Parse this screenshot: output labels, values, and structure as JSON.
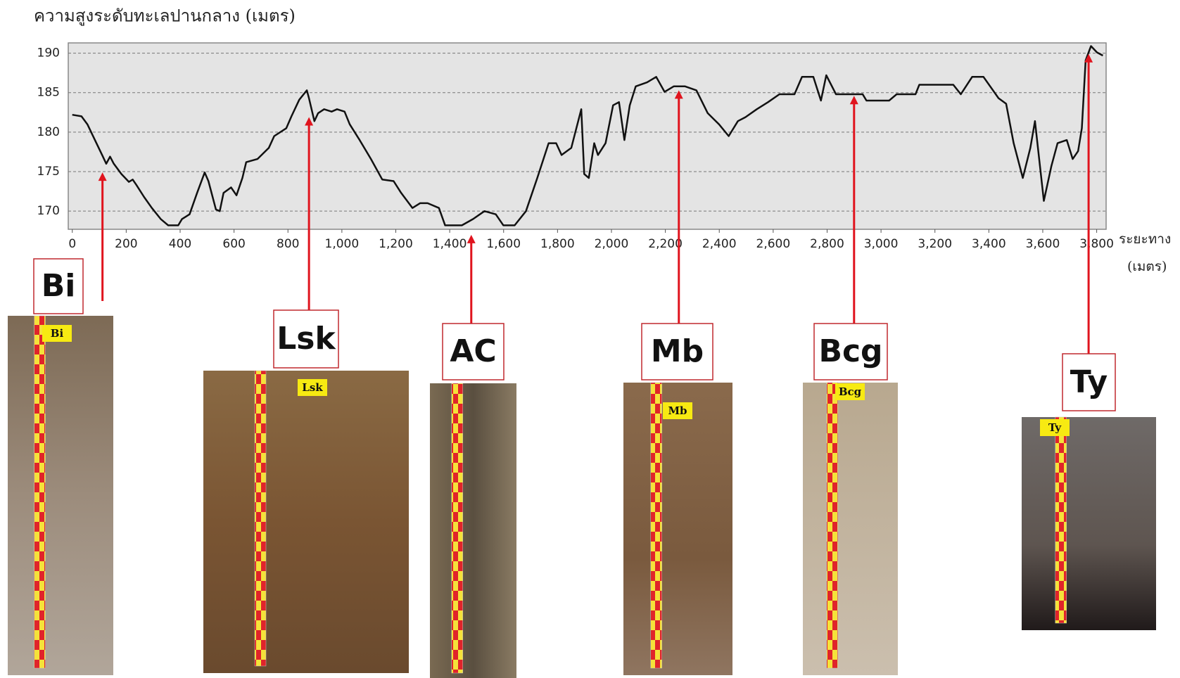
{
  "chart_data": {
    "type": "line",
    "title": "ความสูงระดับทะเลปานกลาง (เมตร)",
    "xlabel": [
      "ระยะทาง",
      "(เมตร)"
    ],
    "x": [
      0,
      34,
      56,
      84,
      112,
      126,
      140,
      154,
      182,
      210,
      224,
      238,
      266,
      295,
      328,
      356,
      393,
      407,
      435,
      463,
      491,
      505,
      533,
      547,
      561,
      589,
      609,
      631,
      645,
      687,
      729,
      749,
      794,
      813,
      842,
      870,
      878,
      898,
      912,
      934,
      962,
      982,
      1010,
      1029,
      1066,
      1108,
      1150,
      1192,
      1220,
      1262,
      1290,
      1318,
      1360,
      1383,
      1445,
      1487,
      1529,
      1571,
      1599,
      1641,
      1683,
      1725,
      1767,
      1795,
      1815,
      1851,
      1888,
      1899,
      1916,
      1936,
      1950,
      1978,
      2006,
      2028,
      2048,
      2068,
      2090,
      2132,
      2166,
      2197,
      2231,
      2273,
      2315,
      2357,
      2399,
      2435,
      2469,
      2497,
      2539,
      2581,
      2623,
      2679,
      2707,
      2749,
      2777,
      2797,
      2833,
      2932,
      2946,
      3030,
      3058,
      3128,
      3142,
      3268,
      3296,
      3338,
      3380,
      3436,
      3464,
      3492,
      3526,
      3554,
      3571,
      3582,
      3604,
      3632,
      3655,
      3689,
      3711,
      3731,
      3745,
      3759,
      3779,
      3801,
      3823
    ],
    "values": [
      182.2,
      182,
      181,
      179,
      177,
      176,
      176.9,
      176,
      174.7,
      173.7,
      174,
      173.3,
      171.8,
      170.4,
      169,
      168.2,
      168.2,
      169,
      169.6,
      172.3,
      174.9,
      173.8,
      170.2,
      170,
      172.3,
      173,
      172,
      174.2,
      176.2,
      176.6,
      178,
      179.5,
      180.5,
      182,
      184.1,
      185.3,
      184.3,
      181.4,
      182.4,
      182.9,
      182.6,
      182.9,
      182.6,
      181,
      179,
      176.6,
      174,
      173.8,
      172.3,
      170.4,
      171,
      171,
      170.4,
      168.2,
      168.2,
      169,
      170,
      169.6,
      168.2,
      168.2,
      170,
      174.2,
      178.6,
      178.6,
      177.1,
      178,
      182.9,
      174.7,
      174.2,
      178.6,
      177.1,
      178.6,
      183.4,
      183.8,
      179,
      183.4,
      185.8,
      186.3,
      187,
      185.1,
      185.8,
      185.8,
      185.3,
      182.4,
      181,
      179.5,
      181.4,
      181.9,
      182.9,
      183.8,
      184.8,
      184.8,
      187,
      187,
      184,
      187.2,
      184.8,
      184.8,
      184,
      184,
      184.8,
      184.8,
      186,
      186,
      184.8,
      187,
      187,
      184.3,
      183.6,
      178.6,
      174.2,
      178,
      181.4,
      178,
      171.3,
      175.7,
      178.6,
      179,
      176.6,
      177.6,
      180.5,
      189.1,
      190.9,
      190.1,
      189.7
    ],
    "color": "#111111",
    "xlim": [
      -15,
      3835
    ],
    "ylim": [
      167.7,
      191.3
    ],
    "xticks": [
      0,
      200,
      400,
      600,
      800,
      {
        "value": 1000,
        "label": "1,000"
      },
      {
        "value": 1200,
        "label": "1,200"
      },
      {
        "value": 1400,
        "label": "1,400"
      },
      {
        "value": 1600,
        "label": "1,600"
      },
      {
        "value": 1800,
        "label": "1,800"
      },
      {
        "value": 2000,
        "label": "2,000"
      },
      {
        "value": 2200,
        "label": "2,200"
      },
      {
        "value": 2400,
        "label": "2,400"
      },
      {
        "value": 2600,
        "label": "2,600"
      },
      {
        "value": 2800,
        "label": "2,800"
      },
      {
        "value": 3000,
        "label": "3,000"
      },
      {
        "value": 3200,
        "label": "3,200"
      },
      {
        "value": 3400,
        "label": "3,400"
      },
      {
        "value": 3600,
        "label": "3,600"
      },
      {
        "value": 3800,
        "label": "3,800"
      }
    ],
    "yticks": [
      170,
      175,
      180,
      185,
      190
    ],
    "grid": true,
    "annotation_color": "#e0141e",
    "annotations": [
      {
        "text": "Bi",
        "x": 112,
        "y": 174.9,
        "tag": "Bi"
      },
      {
        "text": "Lsk",
        "x": 878,
        "y": 181.9,
        "tag": "Lsk"
      },
      {
        "text": "AC",
        "x": 1480,
        "y": 167.0
      },
      {
        "text": "Mb",
        "x": 2250,
        "y": 185.3,
        "tag": "Mb"
      },
      {
        "text": "Bcg",
        "x": 2900,
        "y": 184.6,
        "tag": "Bcg"
      },
      {
        "text": "Ty",
        "x": 3770,
        "y": 189.9,
        "tag": "Ty"
      }
    ]
  }
}
